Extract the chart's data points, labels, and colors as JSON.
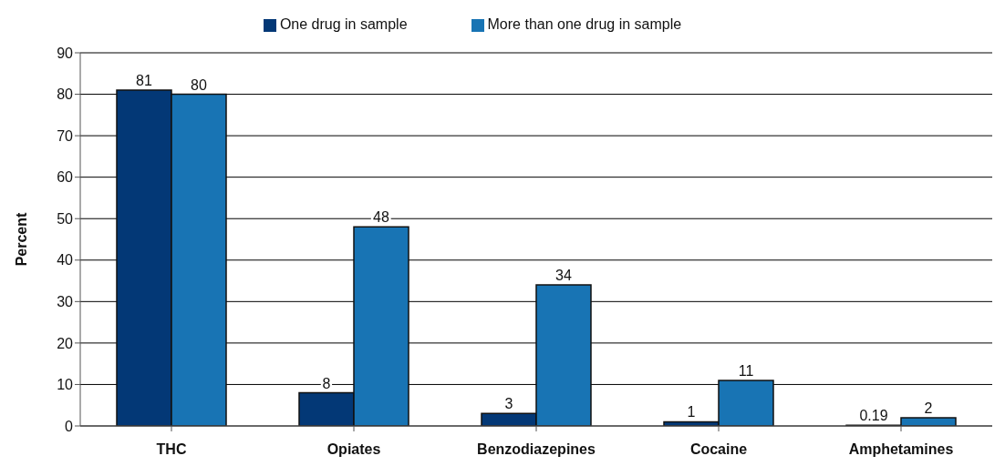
{
  "chart_data": {
    "type": "bar",
    "ylabel": "Percent",
    "categories": [
      "THC",
      "Opiates",
      "Benzodiazepines",
      "Cocaine",
      "Amphetamines"
    ],
    "series": [
      {
        "name": "One drug in sample",
        "color": "#033876",
        "values": [
          81,
          8,
          3,
          1,
          0.19
        ]
      },
      {
        "name": "More than one drug in sample",
        "color": "#1874b4",
        "values": [
          80,
          48,
          34,
          11,
          2
        ]
      }
    ],
    "ylim": [
      0,
      90
    ],
    "yticks": [
      0,
      10,
      20,
      30,
      40,
      50,
      60,
      70,
      80,
      90
    ],
    "grid": "y",
    "legend": "top",
    "data_labels": true
  }
}
